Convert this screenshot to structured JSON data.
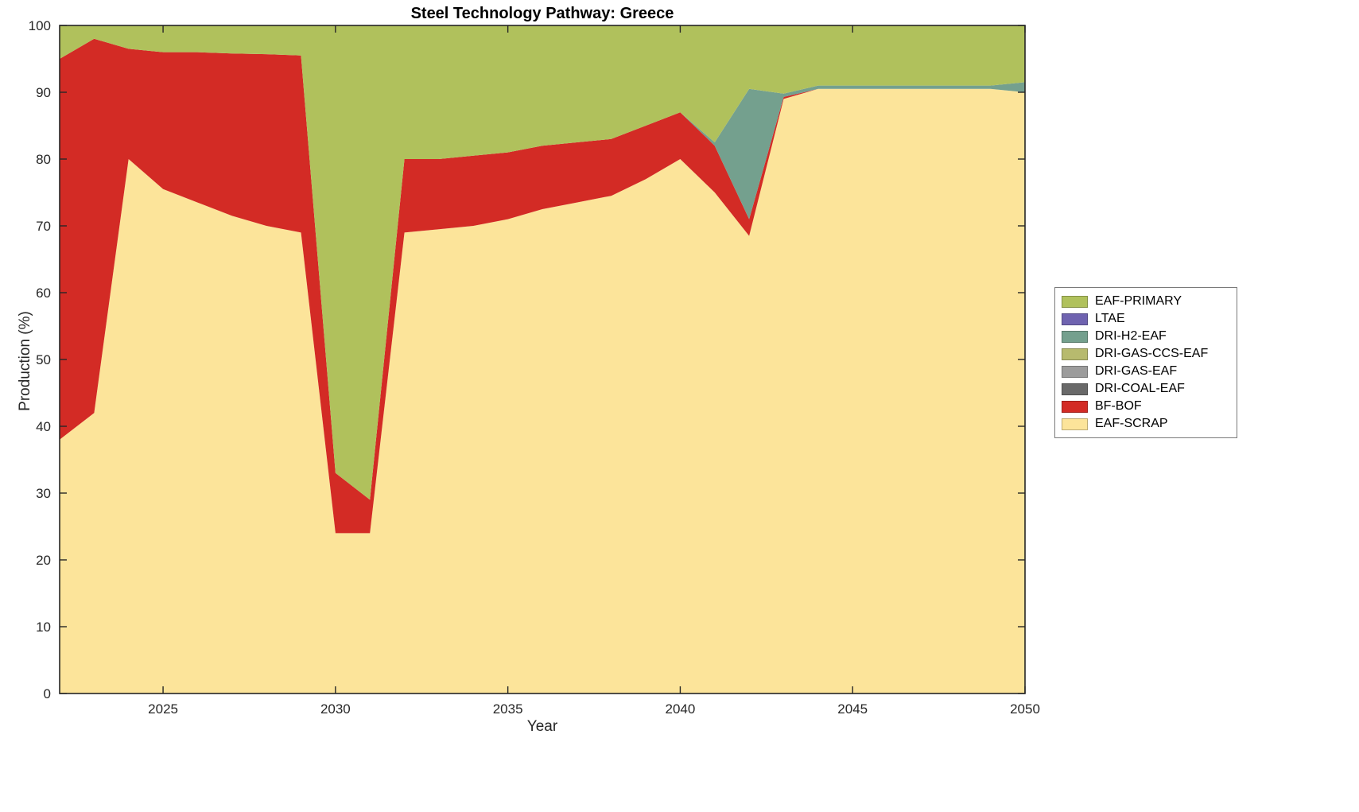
{
  "figure": {
    "title": "Steel Technology Pathway: Greece",
    "xlabel": "Year",
    "ylabel": "Production (%)"
  },
  "chart_data": {
    "type": "area",
    "stacked": true,
    "title": "Steel Technology Pathway: Greece",
    "xlabel": "Year",
    "ylabel": "Production (%)",
    "grid": false,
    "legend_position": "right-outside",
    "xlim": [
      2022,
      2050
    ],
    "ylim": [
      0,
      100
    ],
    "xticks": [
      2025,
      2030,
      2035,
      2040,
      2045,
      2050
    ],
    "yticks": [
      0,
      10,
      20,
      30,
      40,
      50,
      60,
      70,
      80,
      90,
      100
    ],
    "x": [
      2022,
      2023,
      2024,
      2025,
      2026,
      2027,
      2028,
      2029,
      2030,
      2031,
      2032,
      2033,
      2034,
      2035,
      2036,
      2037,
      2038,
      2039,
      2040,
      2041,
      2042,
      2043,
      2044,
      2045,
      2046,
      2047,
      2048,
      2049,
      2050
    ],
    "stack_order_bottom_to_top": [
      "EAF-SCRAP",
      "BF-BOF",
      "DRI-COAL-EAF",
      "DRI-GAS-EAF",
      "DRI-GAS-CCS-EAF",
      "DRI-H2-EAF",
      "LTAE",
      "EAF-PRIMARY"
    ],
    "legend_order_top_to_bottom": [
      "EAF-PRIMARY",
      "LTAE",
      "DRI-H2-EAF",
      "DRI-GAS-CCS-EAF",
      "DRI-GAS-EAF",
      "DRI-COAL-EAF",
      "BF-BOF",
      "EAF-SCRAP"
    ],
    "series": [
      {
        "name": "EAF-SCRAP",
        "color": "#fce49a",
        "values": [
          38,
          42,
          80,
          75.5,
          73.5,
          71.5,
          70,
          69,
          24,
          24,
          69,
          69.5,
          70,
          71,
          72.5,
          73.5,
          74.5,
          77,
          80,
          75,
          68.5,
          89,
          90.5,
          90.5,
          90.5,
          90.5,
          90.5,
          90.5,
          90
        ]
      },
      {
        "name": "BF-BOF",
        "color": "#d32b25",
        "values": [
          57,
          56,
          16.5,
          20.5,
          22.5,
          24.3,
          25.7,
          26.5,
          9,
          5,
          11,
          10.5,
          10.5,
          10,
          9.5,
          9,
          8.5,
          8,
          7,
          7,
          2.5,
          0.3,
          0,
          0,
          0,
          0,
          0,
          0,
          0
        ]
      },
      {
        "name": "DRI-COAL-EAF",
        "color": "#696969",
        "values": [
          0,
          0,
          0,
          0,
          0,
          0,
          0,
          0,
          0,
          0,
          0,
          0,
          0,
          0,
          0,
          0,
          0,
          0,
          0,
          0,
          0,
          0,
          0,
          0,
          0,
          0,
          0,
          0,
          0
        ]
      },
      {
        "name": "DRI-GAS-EAF",
        "color": "#9c9c9c",
        "values": [
          0,
          0,
          0,
          0,
          0,
          0,
          0,
          0,
          0,
          0,
          0,
          0,
          0,
          0,
          0,
          0,
          0,
          0,
          0,
          0,
          0,
          0,
          0,
          0,
          0,
          0,
          0,
          0,
          0
        ]
      },
      {
        "name": "DRI-GAS-CCS-EAF",
        "color": "#b7ba6e",
        "values": [
          0,
          0,
          0,
          0,
          0,
          0,
          0,
          0,
          0,
          0,
          0,
          0,
          0,
          0,
          0,
          0,
          0,
          0,
          0,
          0,
          0,
          0,
          0,
          0,
          0,
          0,
          0,
          0,
          0
        ]
      },
      {
        "name": "DRI-H2-EAF",
        "color": "#74a08e",
        "values": [
          0,
          0,
          0,
          0,
          0,
          0,
          0,
          0,
          0,
          0,
          0,
          0,
          0,
          0,
          0,
          0,
          0,
          0,
          0,
          0.5,
          19.5,
          0.5,
          0.5,
          0.5,
          0.5,
          0.5,
          0.5,
          0.5,
          1.5
        ]
      },
      {
        "name": "LTAE",
        "color": "#6f63b0",
        "values": [
          0,
          0,
          0,
          0,
          0,
          0,
          0,
          0,
          0,
          0,
          0,
          0,
          0,
          0,
          0,
          0,
          0,
          0,
          0,
          0,
          0,
          0,
          0,
          0,
          0,
          0,
          0,
          0,
          0
        ]
      },
      {
        "name": "EAF-PRIMARY",
        "color": "#b0c15c",
        "values": [
          5,
          2,
          3.5,
          4,
          4,
          4.2,
          4.3,
          4.5,
          67,
          71,
          20,
          20,
          19.5,
          19,
          18,
          17.5,
          17,
          15,
          13,
          17.5,
          9.5,
          10.2,
          9,
          9,
          9,
          9,
          9,
          9,
          8.5
        ]
      }
    ]
  }
}
